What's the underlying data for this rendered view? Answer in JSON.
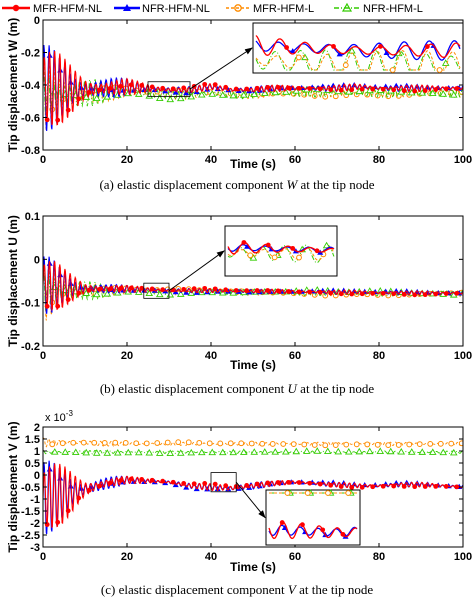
{
  "legend": {
    "entries": [
      {
        "label": "MFR-HFM-NL",
        "color": "#ff0000",
        "marker": "circle",
        "line": "solid"
      },
      {
        "label": "NFR-HFM-NL",
        "color": "#0000ff",
        "marker": "triangle",
        "line": "solid"
      },
      {
        "label": "MFR-HFM-L",
        "color": "#ff8c00",
        "marker": "open-circle",
        "line": "dashed"
      },
      {
        "label": "NFR-HFM-L",
        "color": "#33cc00",
        "marker": "open-triangle",
        "line": "dash-dot"
      }
    ]
  },
  "chart_data": [
    {
      "type": "line",
      "caption": "(a)  elastic displacement component W at the tip node",
      "caption_parts": {
        "prefix": "(a)  elastic displacement component",
        "symbol": "W",
        "suffix": "at the tip node"
      },
      "xlabel": "Time (s)",
      "ylabel": "Tip displacement W (m)",
      "xlim": [
        0,
        100
      ],
      "ylim": [
        -0.8,
        0
      ],
      "xticks": [
        "0",
        "20",
        "40",
        "60",
        "80",
        "100"
      ],
      "yticks": [
        "0",
        "-0.2",
        "-0.4",
        "-0.6",
        "-0.8"
      ],
      "exponent_label": "",
      "grid": false,
      "series": [
        {
          "name": "MFR-HFM-NL",
          "x": [
            0,
            2,
            5,
            10,
            15,
            20,
            25,
            30,
            35,
            40,
            45,
            50,
            55,
            60,
            65,
            70,
            75,
            80,
            85,
            90,
            95,
            100
          ],
          "y": [
            -0.42,
            -0.42,
            -0.43,
            -0.43,
            -0.42,
            -0.41,
            -0.42,
            -0.43,
            -0.43,
            -0.41,
            -0.43,
            -0.43,
            -0.42,
            -0.42,
            -0.42,
            -0.42,
            -0.41,
            -0.42,
            -0.42,
            -0.42,
            -0.42,
            -0.42
          ],
          "amplitude": [
            0.28,
            0.26,
            0.2,
            0.12,
            0.07,
            0.05,
            0.03,
            0.025,
            0.02,
            0.02,
            0.02,
            0.02,
            0.02,
            0.02,
            0.02,
            0.02,
            0.02,
            0.02,
            0.02,
            0.02,
            0.02,
            0.02
          ]
        },
        {
          "name": "NFR-HFM-NL",
          "x": [
            0,
            2,
            5,
            10,
            15,
            20,
            25,
            30,
            35,
            40,
            45,
            50,
            55,
            60,
            65,
            70,
            75,
            80,
            85,
            90,
            95,
            100
          ],
          "y": [
            -0.42,
            -0.42,
            -0.43,
            -0.43,
            -0.42,
            -0.41,
            -0.42,
            -0.43,
            -0.43,
            -0.41,
            -0.43,
            -0.43,
            -0.42,
            -0.42,
            -0.42,
            -0.42,
            -0.41,
            -0.42,
            -0.42,
            -0.42,
            -0.42,
            -0.42
          ],
          "amplitude": [
            0.28,
            0.26,
            0.2,
            0.12,
            0.07,
            0.05,
            0.03,
            0.025,
            0.02,
            0.02,
            0.02,
            0.02,
            0.02,
            0.02,
            0.02,
            0.02,
            0.02,
            0.02,
            0.02,
            0.02,
            0.02,
            0.02
          ]
        },
        {
          "name": "MFR-HFM-L",
          "x": [
            0,
            2,
            5,
            10,
            15,
            20,
            25,
            30,
            35,
            40,
            45,
            50,
            55,
            60,
            65,
            70,
            75,
            80,
            85,
            90,
            95,
            100
          ],
          "y": [
            -0.46,
            -0.46,
            -0.46,
            -0.45,
            -0.44,
            -0.44,
            -0.45,
            -0.46,
            -0.46,
            -0.45,
            -0.46,
            -0.46,
            -0.45,
            -0.45,
            -0.45,
            -0.45,
            -0.45,
            -0.45,
            -0.45,
            -0.45,
            -0.45,
            -0.45
          ],
          "amplitude": [
            0.25,
            0.23,
            0.18,
            0.1,
            0.06,
            0.04,
            0.03,
            0.03,
            0.03,
            0.025,
            0.025,
            0.025,
            0.025,
            0.025,
            0.025,
            0.025,
            0.025,
            0.025,
            0.025,
            0.025,
            0.025,
            0.025
          ]
        },
        {
          "name": "NFR-HFM-L",
          "x": [
            0,
            2,
            5,
            10,
            15,
            20,
            25,
            30,
            35,
            40,
            45,
            50,
            55,
            60,
            65,
            70,
            75,
            80,
            85,
            90,
            95,
            100
          ],
          "y": [
            -0.46,
            -0.46,
            -0.46,
            -0.45,
            -0.44,
            -0.44,
            -0.45,
            -0.46,
            -0.46,
            -0.45,
            -0.46,
            -0.46,
            -0.45,
            -0.45,
            -0.45,
            -0.45,
            -0.45,
            -0.45,
            -0.45,
            -0.45,
            -0.45,
            -0.45
          ],
          "amplitude": [
            0.25,
            0.23,
            0.18,
            0.1,
            0.06,
            0.04,
            0.03,
            0.03,
            0.03,
            0.025,
            0.025,
            0.025,
            0.025,
            0.025,
            0.025,
            0.025,
            0.025,
            0.025,
            0.025,
            0.025,
            0.025,
            0.025
          ]
        }
      ],
      "zoom_window": {
        "x": [
          25,
          35
        ],
        "y": [
          -0.47,
          -0.38
        ]
      }
    },
    {
      "type": "line",
      "caption": "(b)  elastic displacement component U at the tip node",
      "caption_parts": {
        "prefix": "(b)  elastic displacement component",
        "symbol": "U",
        "suffix": "at the tip node"
      },
      "xlabel": "Time (s)",
      "ylabel": "Tip displacement U (m)",
      "xlim": [
        0,
        100
      ],
      "ylim": [
        -0.2,
        0.1
      ],
      "xticks": [
        "0",
        "20",
        "40",
        "60",
        "80",
        "100"
      ],
      "yticks": [
        "0.1",
        "0",
        "-0.1",
        "-0.2"
      ],
      "exponent_label": "",
      "grid": false,
      "series": [
        {
          "name": "MFR-HFM-NL",
          "x": [
            0,
            2,
            5,
            10,
            15,
            20,
            25,
            30,
            35,
            40,
            45,
            50,
            55,
            60,
            65,
            70,
            75,
            80,
            85,
            90,
            95,
            100
          ],
          "y": [
            -0.06,
            -0.06,
            -0.065,
            -0.068,
            -0.068,
            -0.068,
            -0.07,
            -0.072,
            -0.072,
            -0.072,
            -0.073,
            -0.074,
            -0.074,
            -0.075,
            -0.075,
            -0.076,
            -0.076,
            -0.077,
            -0.077,
            -0.078,
            -0.078,
            -0.078
          ],
          "amplitude": [
            0.07,
            0.065,
            0.045,
            0.022,
            0.012,
            0.008,
            0.006,
            0.005,
            0.005,
            0.005,
            0.005,
            0.005,
            0.005,
            0.005,
            0.005,
            0.005,
            0.005,
            0.005,
            0.005,
            0.005,
            0.005,
            0.005
          ]
        },
        {
          "name": "NFR-HFM-NL",
          "x": [
            0,
            2,
            5,
            10,
            15,
            20,
            25,
            30,
            35,
            40,
            45,
            50,
            55,
            60,
            65,
            70,
            75,
            80,
            85,
            90,
            95,
            100
          ],
          "y": [
            -0.06,
            -0.06,
            -0.065,
            -0.068,
            -0.068,
            -0.068,
            -0.07,
            -0.072,
            -0.072,
            -0.072,
            -0.073,
            -0.074,
            -0.074,
            -0.075,
            -0.075,
            -0.076,
            -0.076,
            -0.077,
            -0.077,
            -0.078,
            -0.078,
            -0.078
          ],
          "amplitude": [
            0.07,
            0.065,
            0.045,
            0.022,
            0.012,
            0.008,
            0.006,
            0.005,
            0.005,
            0.005,
            0.005,
            0.005,
            0.005,
            0.005,
            0.005,
            0.005,
            0.005,
            0.005,
            0.005,
            0.005,
            0.005,
            0.005
          ]
        },
        {
          "name": "MFR-HFM-L",
          "x": [
            0,
            2,
            5,
            10,
            15,
            20,
            25,
            30,
            35,
            40,
            45,
            50,
            55,
            60,
            65,
            70,
            75,
            80,
            85,
            90,
            95,
            100
          ],
          "y": [
            -0.07,
            -0.07,
            -0.072,
            -0.072,
            -0.072,
            -0.072,
            -0.074,
            -0.075,
            -0.075,
            -0.075,
            -0.076,
            -0.076,
            -0.076,
            -0.077,
            -0.077,
            -0.078,
            -0.078,
            -0.078,
            -0.078,
            -0.079,
            -0.079,
            -0.079
          ],
          "amplitude": [
            0.08,
            0.075,
            0.05,
            0.025,
            0.014,
            0.01,
            0.008,
            0.007,
            0.007,
            0.007,
            0.007,
            0.007,
            0.007,
            0.007,
            0.007,
            0.007,
            0.007,
            0.007,
            0.007,
            0.007,
            0.007,
            0.007
          ]
        },
        {
          "name": "NFR-HFM-L",
          "x": [
            0,
            2,
            5,
            10,
            15,
            20,
            25,
            30,
            35,
            40,
            45,
            50,
            55,
            60,
            65,
            70,
            75,
            80,
            85,
            90,
            95,
            100
          ],
          "y": [
            -0.07,
            -0.07,
            -0.072,
            -0.072,
            -0.072,
            -0.072,
            -0.074,
            -0.075,
            -0.075,
            -0.075,
            -0.076,
            -0.076,
            -0.076,
            -0.077,
            -0.077,
            -0.078,
            -0.078,
            -0.078,
            -0.078,
            -0.079,
            -0.079,
            -0.079
          ],
          "amplitude": [
            0.08,
            0.075,
            0.05,
            0.025,
            0.014,
            0.01,
            0.008,
            0.007,
            0.007,
            0.007,
            0.007,
            0.007,
            0.007,
            0.007,
            0.007,
            0.007,
            0.007,
            0.007,
            0.007,
            0.007,
            0.007,
            0.007
          ]
        }
      ],
      "zoom_window": {
        "x": [
          24,
          30
        ],
        "y": [
          -0.09,
          -0.055
        ]
      }
    },
    {
      "type": "line",
      "caption": "(c)  elastic displacement component V at the tip node",
      "caption_parts": {
        "prefix": "(c)  elastic displacement component",
        "symbol": "V",
        "suffix": "at the tip node"
      },
      "xlabel": "Time (s)",
      "ylabel": "Tip displacement V (m)",
      "xlim": [
        0,
        100
      ],
      "ylim": [
        -3,
        2
      ],
      "xticks": [
        "0",
        "20",
        "40",
        "60",
        "80",
        "100"
      ],
      "yticks": [
        "2",
        "1.5",
        "1",
        "0.5",
        "0",
        "-0.5",
        "-1",
        "-1.5",
        "-2",
        "-2.5",
        "-3"
      ],
      "exponent_label": "x 10",
      "exponent_power": "-3",
      "grid": false,
      "series": [
        {
          "name": "MFR-HFM-NL",
          "x": [
            0,
            2,
            5,
            10,
            15,
            20,
            25,
            30,
            35,
            40,
            45,
            50,
            55,
            60,
            65,
            70,
            75,
            80,
            85,
            90,
            95,
            100
          ],
          "y": [
            -1.0,
            -0.9,
            -0.8,
            -0.6,
            -0.35,
            -0.2,
            -0.25,
            -0.3,
            -0.45,
            -0.5,
            -0.55,
            -0.45,
            -0.35,
            -0.3,
            -0.35,
            -0.4,
            -0.45,
            -0.45,
            -0.4,
            -0.4,
            -0.45,
            -0.5
          ],
          "amplitude": [
            1.6,
            1.5,
            1.2,
            0.6,
            0.3,
            0.15,
            0.12,
            0.1,
            0.1,
            0.15,
            0.2,
            0.15,
            0.1,
            0.1,
            0.1,
            0.1,
            0.1,
            0.1,
            0.1,
            0.1,
            0.1,
            0.1
          ]
        },
        {
          "name": "NFR-HFM-NL",
          "x": [
            0,
            2,
            5,
            10,
            15,
            20,
            25,
            30,
            35,
            40,
            45,
            50,
            55,
            60,
            65,
            70,
            75,
            80,
            85,
            90,
            95,
            100
          ],
          "y": [
            -1.0,
            -0.9,
            -0.8,
            -0.6,
            -0.35,
            -0.2,
            -0.25,
            -0.3,
            -0.45,
            -0.5,
            -0.55,
            -0.45,
            -0.35,
            -0.3,
            -0.35,
            -0.4,
            -0.45,
            -0.45,
            -0.4,
            -0.4,
            -0.45,
            -0.5
          ],
          "amplitude": [
            1.6,
            1.5,
            1.2,
            0.6,
            0.3,
            0.15,
            0.12,
            0.1,
            0.1,
            0.15,
            0.2,
            0.15,
            0.1,
            0.1,
            0.1,
            0.1,
            0.1,
            0.1,
            0.1,
            0.1,
            0.1,
            0.1
          ]
        },
        {
          "name": "MFR-HFM-L",
          "x": [
            0,
            2,
            5,
            10,
            15,
            20,
            25,
            30,
            35,
            40,
            45,
            50,
            55,
            60,
            65,
            70,
            75,
            80,
            85,
            90,
            95,
            100
          ],
          "y": [
            1.35,
            1.35,
            1.35,
            1.35,
            1.3,
            1.3,
            1.3,
            1.3,
            1.3,
            1.3,
            1.3,
            1.3,
            1.3,
            1.3,
            1.3,
            1.3,
            1.3,
            1.3,
            1.3,
            1.3,
            1.3,
            1.3
          ],
          "amplitude": [
            0.2,
            0.18,
            0.15,
            0.12,
            0.1,
            0.08,
            0.07,
            0.07,
            0.07,
            0.07,
            0.07,
            0.07,
            0.07,
            0.07,
            0.07,
            0.07,
            0.07,
            0.07,
            0.07,
            0.07,
            0.07,
            0.07
          ]
        },
        {
          "name": "NFR-HFM-L",
          "x": [
            0,
            2,
            5,
            10,
            15,
            20,
            25,
            30,
            35,
            40,
            45,
            50,
            55,
            60,
            65,
            70,
            75,
            80,
            85,
            90,
            95,
            100
          ],
          "y": [
            0.95,
            0.95,
            0.95,
            0.95,
            0.95,
            0.95,
            0.95,
            0.95,
            0.95,
            0.95,
            0.95,
            0.95,
            0.95,
            0.95,
            0.95,
            0.95,
            0.95,
            0.95,
            0.95,
            0.95,
            0.95,
            0.95
          ],
          "amplitude": [
            0.1,
            0.1,
            0.09,
            0.08,
            0.07,
            0.06,
            0.05,
            0.05,
            0.05,
            0.05,
            0.05,
            0.05,
            0.05,
            0.05,
            0.05,
            0.05,
            0.05,
            0.05,
            0.05,
            0.05,
            0.05,
            0.05
          ]
        }
      ],
      "zoom_window": {
        "x": [
          40,
          46
        ],
        "y": [
          -0.7,
          0.1
        ]
      }
    }
  ]
}
